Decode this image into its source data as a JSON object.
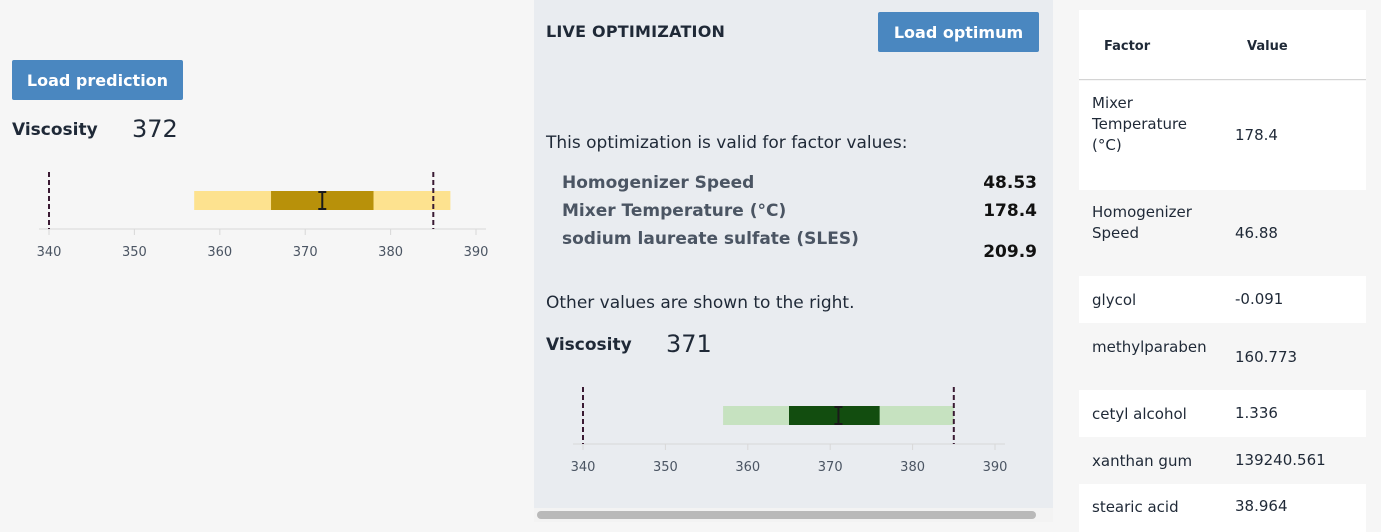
{
  "prediction": {
    "button_label": "Load prediction",
    "metric_label": "Viscosity",
    "metric_value": "372",
    "chart_data": {
      "type": "interval",
      "axis_min": 340,
      "axis_max": 390,
      "ticks": [
        "340",
        "350",
        "360",
        "370",
        "380",
        "390"
      ],
      "spec_limits": [
        340,
        385
      ],
      "outer_interval": [
        357,
        387
      ],
      "inner_interval": [
        366,
        378
      ],
      "point": 372,
      "colors": {
        "outer": "#fde28f",
        "inner": "#b8910a",
        "limit": "#3a1a33"
      }
    }
  },
  "optimization": {
    "heading": "LIVE OPTIMIZATION",
    "button_label": "Load optimum",
    "intro": "This optimization is valid for factor values:",
    "factors": [
      {
        "name": "Homogenizer Speed",
        "value": "48.53"
      },
      {
        "name": "Mixer Temperature (°C)",
        "value": "178.4"
      },
      {
        "name": "sodium laureate sulfate (SLES)",
        "value": "209.9"
      }
    ],
    "note": "Other values are shown to the right.",
    "metric_label": "Viscosity",
    "metric_value": "371",
    "chart_data": {
      "type": "interval",
      "axis_min": 340,
      "axis_max": 390,
      "ticks": [
        "340",
        "350",
        "360",
        "370",
        "380",
        "390"
      ],
      "spec_limits": [
        340,
        385
      ],
      "outer_interval": [
        357,
        385
      ],
      "inner_interval": [
        365,
        376
      ],
      "point": 371,
      "colors": {
        "outer": "#c6e2c0",
        "inner": "#124d0f",
        "limit": "#3a1a33"
      }
    }
  },
  "table": {
    "headers": [
      "Factor",
      "Value"
    ],
    "rows": [
      {
        "factor": "Mixer Temperature (°C)",
        "value": "178.4"
      },
      {
        "factor": "Homogenizer Speed",
        "value": "46.88"
      },
      {
        "factor": "glycol",
        "value": "-0.091"
      },
      {
        "factor": "methylparaben",
        "value": "160.773"
      },
      {
        "factor": "cetyl alcohol",
        "value": "1.336"
      },
      {
        "factor": "xanthan gum",
        "value": "139240.561"
      },
      {
        "factor": "stearic acid",
        "value": "38.964"
      }
    ]
  }
}
